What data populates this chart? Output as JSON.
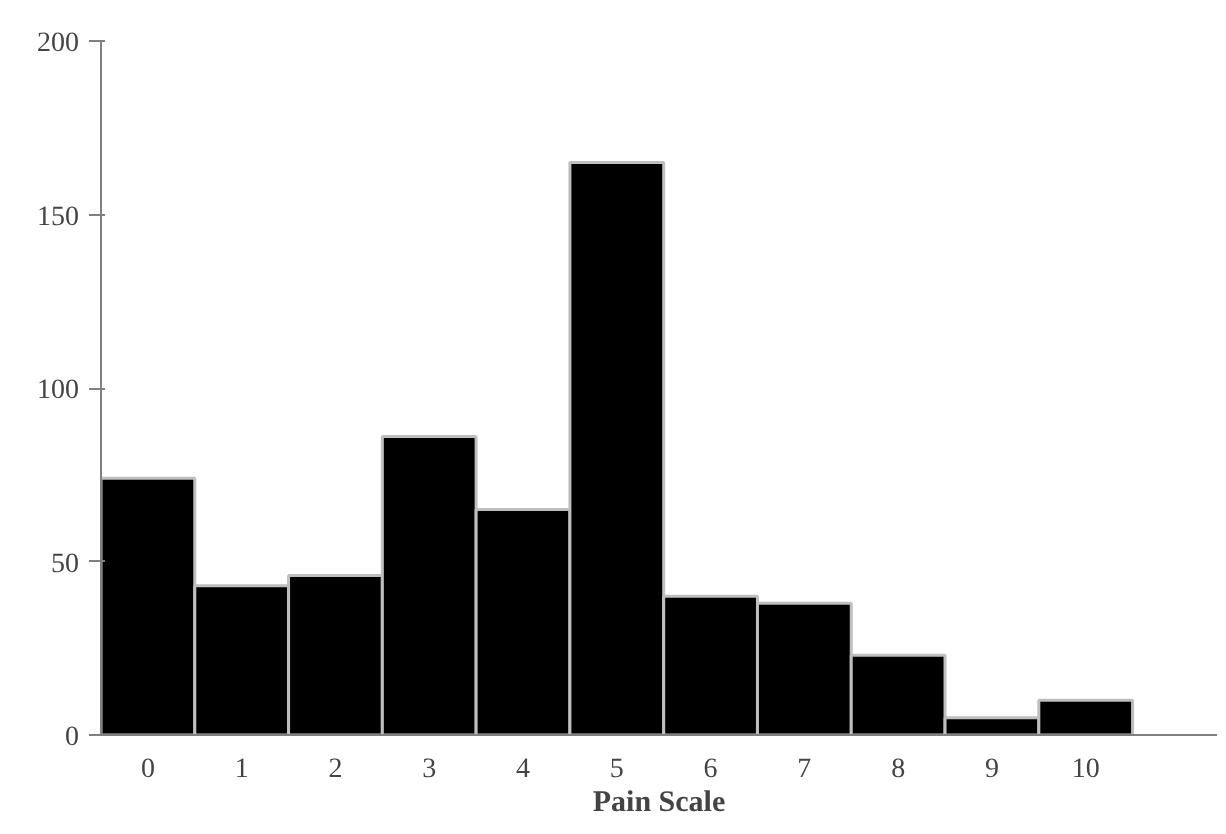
{
  "chart_data": {
    "type": "bar",
    "xlabel": "Pain Scale",
    "categories": [
      "0",
      "1",
      "2",
      "3",
      "4",
      "5",
      "6",
      "7",
      "8",
      "9",
      "10"
    ],
    "values": [
      74,
      43,
      46,
      86,
      65,
      165,
      40,
      38,
      23,
      5,
      10
    ],
    "color": "#000000",
    "ylim": [
      0,
      200
    ],
    "yticks": [
      0,
      50,
      100,
      150,
      200
    ],
    "grid": false
  }
}
